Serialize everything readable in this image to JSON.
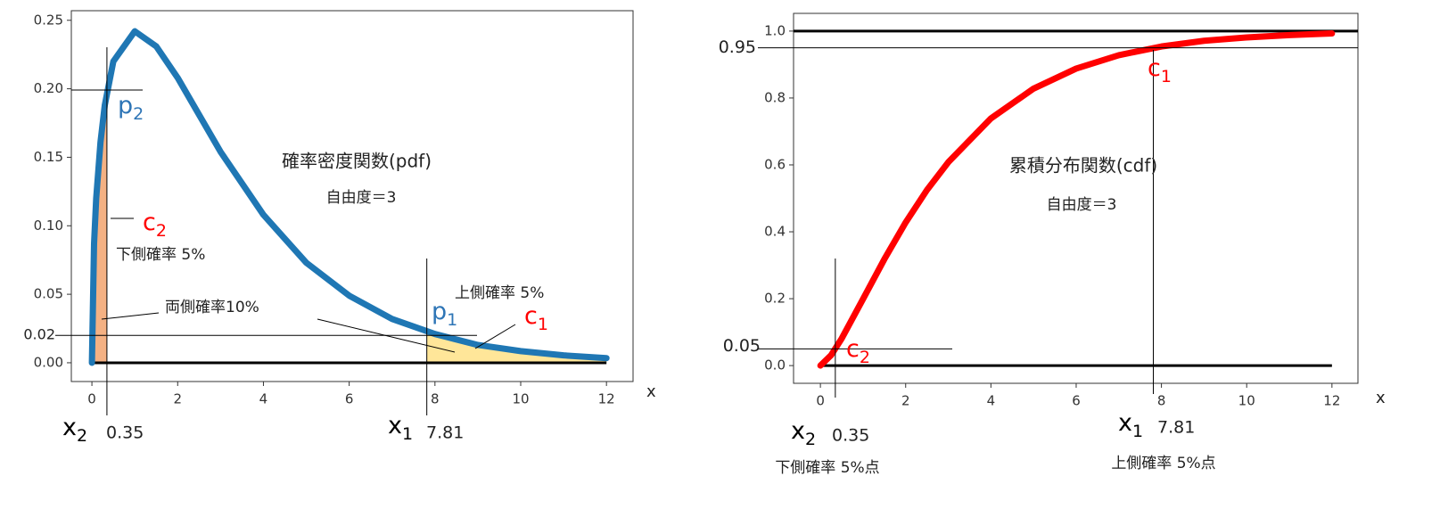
{
  "chart_data": [
    {
      "type": "line",
      "color": "#1f77b4",
      "xlabel": "x",
      "x": [
        0,
        0.05,
        0.1,
        0.2,
        0.3,
        0.5,
        1,
        1.5,
        2,
        3,
        4,
        5,
        6,
        7,
        8,
        9,
        10,
        11,
        12
      ],
      "values": [
        0,
        0.087,
        0.12,
        0.161,
        0.188,
        0.22,
        0.242,
        0.231,
        0.208,
        0.154,
        0.108,
        0.073,
        0.049,
        0.032,
        0.021,
        0.013,
        0.0085,
        0.0054,
        0.0034
      ],
      "xlim": [
        -0.48,
        12.62
      ],
      "ylim": [
        -0.0137,
        0.257
      ],
      "xticks": [
        0,
        2,
        4,
        6,
        8,
        10,
        12
      ],
      "yticks": [
        {
          "value": 0,
          "label": "0.00"
        },
        0.05,
        {
          "value": 0.1,
          "label": "0.10"
        },
        0.15,
        {
          "value": 0.2,
          "label": "0.20"
        },
        0.25
      ],
      "markers": {
        "lower": 0.35,
        "upper": 7.81,
        "level": 0.02
      },
      "annotations": [
        "確率密度関数(pdf)",
        "自由度＝3",
        "下側確率 5%",
        "両側確率10%",
        "上側確率 5%"
      ],
      "symbols": [
        {
          "text": "p",
          "sub": "2"
        },
        {
          "text": "c",
          "sub": "2"
        },
        {
          "text": "p",
          "sub": "1"
        },
        {
          "text": "c",
          "sub": "1"
        },
        {
          "text": "x",
          "sub": "2"
        },
        {
          "text": "x",
          "sub": "1"
        }
      ]
    },
    {
      "type": "line",
      "color": "#ff0000",
      "xlabel": "x",
      "x": [
        0,
        0.25,
        0.5,
        1,
        1.5,
        2,
        2.5,
        3,
        4,
        5,
        6,
        7,
        8,
        9,
        10,
        11,
        12
      ],
      "values": [
        0,
        0.031,
        0.081,
        0.199,
        0.318,
        0.428,
        0.525,
        0.608,
        0.739,
        0.828,
        0.888,
        0.928,
        0.954,
        0.971,
        0.981,
        0.988,
        0.993
      ],
      "xlim": [
        -0.63,
        12.61
      ],
      "ylim": [
        -0.053,
        1.053
      ],
      "xticks": [
        0,
        2,
        4,
        6,
        8,
        10,
        12
      ],
      "yticks": [
        {
          "value": 0,
          "label": "0.0"
        },
        0.2,
        0.4,
        0.6,
        0.8,
        {
          "value": 1,
          "label": "1.0"
        }
      ],
      "markers": {
        "lower": 0.35,
        "upper": 7.81,
        "lower_p": 0.05,
        "upper_p": 0.95
      },
      "annotations": [
        "累積分布関数(cdf)",
        "自由度＝3",
        "下側確率 5%点",
        "上側確率 5%点"
      ],
      "symbols": [
        {
          "text": "c",
          "sub": "1"
        },
        {
          "text": "c",
          "sub": "2"
        },
        {
          "text": "x",
          "sub": "2"
        },
        {
          "text": "x",
          "sub": "1"
        }
      ]
    }
  ]
}
